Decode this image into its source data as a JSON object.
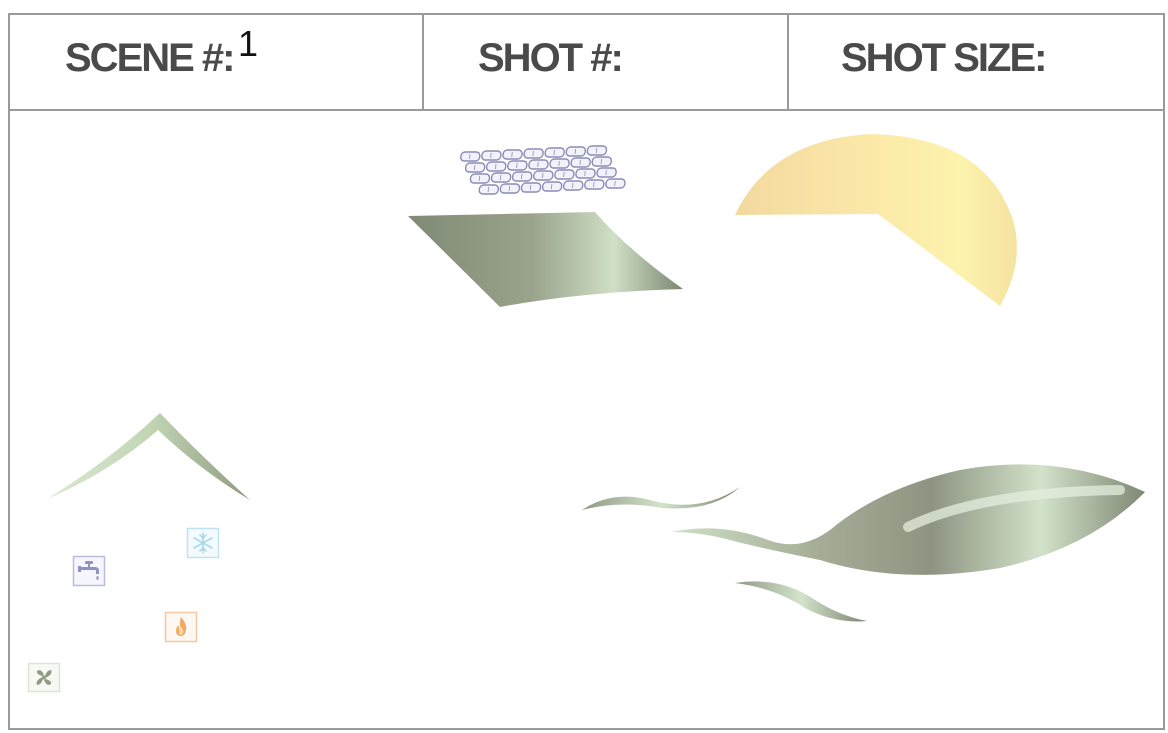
{
  "header": {
    "scene_label": "SCENE #:",
    "scene_value": "1",
    "shot_label": "SHOT #:",
    "shot_size_label": "SHOT SIZE:"
  },
  "colors": {
    "border": "#9a9a9a",
    "label": "#4a4a4a",
    "sage_dark": "#7f8a74",
    "sage_light": "#c9dcbf",
    "sun_light": "#fbf1a8",
    "sun_warm": "#f3d9a0"
  },
  "scene_elements": {
    "solar_panel": "solar-panel-icon",
    "sun": "sun-shape-icon",
    "roof": "roof-shape-icon",
    "leaf": "leaf-shape-icon",
    "wind": "wind-swoosh-icon",
    "faucet": "faucet-icon",
    "snowflake": "snowflake-icon",
    "flame": "flame-icon",
    "fan": "fan-icon"
  }
}
